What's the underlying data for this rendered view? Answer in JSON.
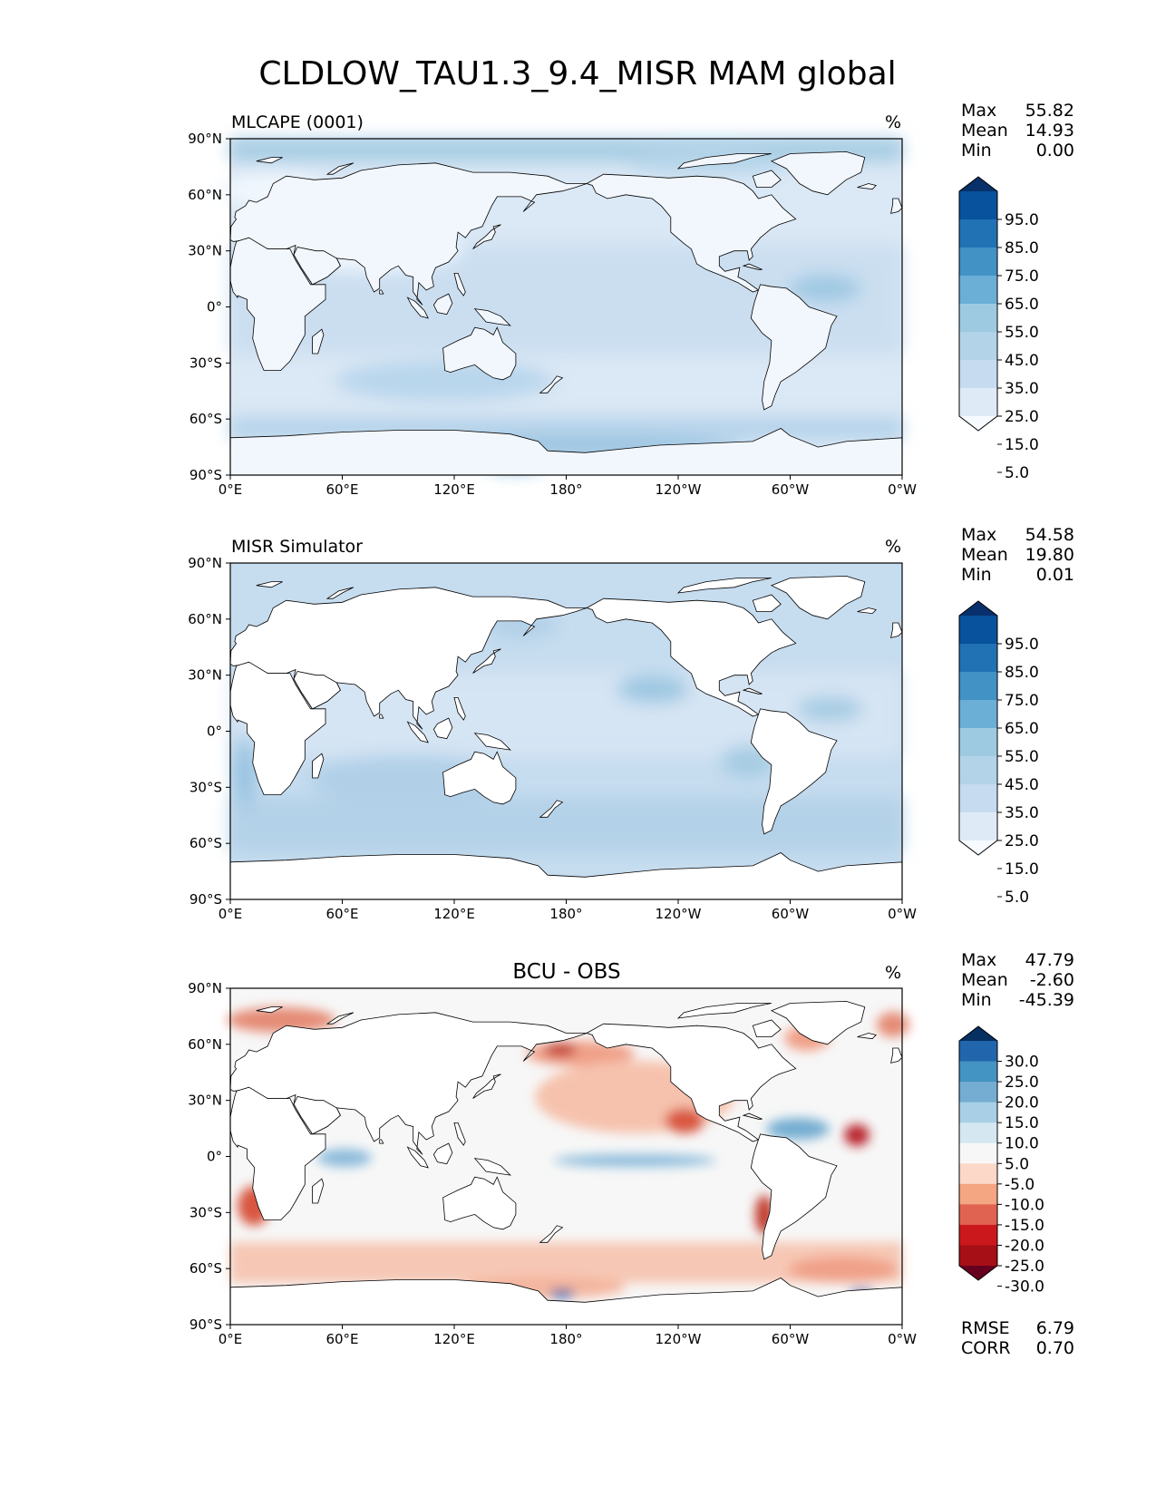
{
  "figure_title": "CLDLOW_TAU1.3_9.4_MISR MAM global",
  "colors": {
    "blues": [
      "#f7fbff",
      "#deebf7",
      "#c6dbef",
      "#b3d3e8",
      "#9ecae1",
      "#6baed6",
      "#4292c6",
      "#2171b5",
      "#08519c",
      "#08306b"
    ],
    "diff": [
      "#67001f",
      "#a50f15",
      "#cb181d",
      "#e06352",
      "#f4a582",
      "#fbd8c8",
      "#f7f7f7",
      "#d5e7f1",
      "#a8cfe6",
      "#74add1",
      "#4393c3",
      "#2166ac",
      "#053061"
    ],
    "frame": "#000000",
    "land": "#ffffff",
    "coast": "#000000"
  },
  "chart_data": [
    {
      "type": "heatmap",
      "panel": "MLCAPE (0001)",
      "title": "MLCAPE (0001)",
      "units": "%",
      "map_projection": "PlateCarree",
      "xticks": [
        "0°E",
        "60°E",
        "120°E",
        "180°",
        "120°W",
        "60°W",
        "0°W"
      ],
      "yticks": [
        "90°N",
        "60°N",
        "30°N",
        "0°",
        "30°S",
        "60°S",
        "90°S"
      ],
      "xlim": [
        0,
        360
      ],
      "ylim": [
        -90,
        90
      ],
      "stats": {
        "Max": "55.82",
        "Mean": "14.93",
        "Min": "0.00"
      },
      "stat_labels": [
        "Max",
        "Mean",
        "Min"
      ],
      "stat_values": [
        "55.82",
        "14.93",
        "0.00"
      ],
      "colorbar": {
        "levels": [
          "95.0",
          "85.0",
          "75.0",
          "65.0",
          "55.0",
          "45.0",
          "35.0",
          "25.0",
          "15.0",
          "5.0"
        ],
        "extend": "both"
      }
    },
    {
      "type": "heatmap",
      "panel": "MISR Simulator",
      "title": "MISR Simulator",
      "units": "%",
      "map_projection": "PlateCarree",
      "xticks": [
        "0°E",
        "60°E",
        "120°E",
        "180°",
        "120°W",
        "60°W",
        "0°W"
      ],
      "yticks": [
        "90°N",
        "60°N",
        "30°N",
        "0°",
        "30°S",
        "60°S",
        "90°S"
      ],
      "xlim": [
        0,
        360
      ],
      "ylim": [
        -90,
        90
      ],
      "stats": {
        "Max": "54.58",
        "Mean": "19.80",
        "Min": "0.01"
      },
      "stat_labels": [
        "Max",
        "Mean",
        "Min"
      ],
      "stat_values": [
        "54.58",
        "19.80",
        "0.01"
      ],
      "colorbar": {
        "levels": [
          "95.0",
          "85.0",
          "75.0",
          "65.0",
          "55.0",
          "45.0",
          "35.0",
          "25.0",
          "15.0",
          "5.0"
        ],
        "extend": "both"
      }
    },
    {
      "type": "heatmap",
      "panel": "BCU - OBS",
      "title": "BCU - OBS",
      "units": "%",
      "map_projection": "PlateCarree",
      "xticks": [
        "0°E",
        "60°E",
        "120°E",
        "180°",
        "120°W",
        "60°W",
        "0°W"
      ],
      "yticks": [
        "90°N",
        "60°N",
        "30°N",
        "0°",
        "30°S",
        "60°S",
        "90°S"
      ],
      "xlim": [
        0,
        360
      ],
      "ylim": [
        -90,
        90
      ],
      "stats": {
        "Max": "47.79",
        "Mean": "-2.60",
        "Min": "-45.39"
      },
      "stat_labels": [
        "Max",
        "Mean",
        "Min"
      ],
      "stat_values": [
        "47.79",
        "-2.60",
        "-45.39"
      ],
      "colorbar": {
        "levels": [
          "30.0",
          "25.0",
          "20.0",
          "15.0",
          "10.0",
          "5.0",
          "-5.0",
          "-10.0",
          "-15.0",
          "-20.0",
          "-25.0",
          "-30.0"
        ],
        "extend": "both"
      },
      "extra_stats": {
        "RMSE": "6.79",
        "CORR": "0.70"
      },
      "extra_labels": [
        "RMSE",
        "CORR"
      ],
      "extra_values": [
        "6.79",
        "0.70"
      ]
    }
  ]
}
